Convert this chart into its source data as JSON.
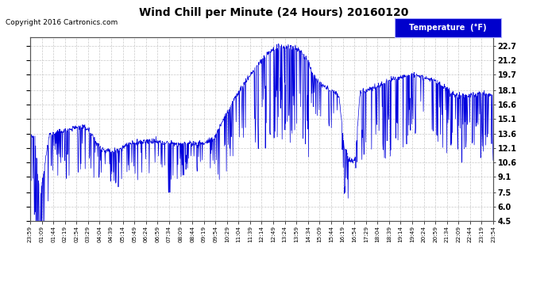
{
  "title": "Wind Chill per Minute (24 Hours) 20160120",
  "copyright": "Copyright 2016 Cartronics.com",
  "legend_label": "Temperature  (°F)",
  "yticks": [
    4.5,
    6.0,
    7.5,
    9.1,
    10.6,
    12.1,
    13.6,
    15.1,
    16.6,
    18.1,
    19.7,
    21.2,
    22.7
  ],
  "ymin": 4.5,
  "ymax": 23.6,
  "line_color": "#0000dd",
  "bg_color": "#ffffff",
  "plot_bg_color": "#ffffff",
  "grid_color": "#bbbbbb",
  "title_color": "#000000",
  "copyright_color": "#000000",
  "legend_bg": "#0000cc",
  "legend_text_color": "#ffffff",
  "xtick_labels": [
    "23:59",
    "01:09",
    "01:44",
    "02:19",
    "02:54",
    "03:29",
    "04:04",
    "04:39",
    "05:14",
    "05:49",
    "06:24",
    "06:59",
    "07:34",
    "08:09",
    "08:44",
    "09:19",
    "09:54",
    "10:29",
    "11:04",
    "11:39",
    "12:14",
    "12:49",
    "13:24",
    "13:59",
    "14:34",
    "15:09",
    "15:44",
    "16:19",
    "16:54",
    "17:29",
    "18:04",
    "18:39",
    "19:14",
    "19:49",
    "20:24",
    "20:59",
    "21:34",
    "22:09",
    "22:44",
    "23:19",
    "23:54"
  ],
  "envelope_x": [
    0,
    15,
    30,
    60,
    100,
    150,
    180,
    220,
    260,
    310,
    360,
    430,
    480,
    540,
    570,
    600,
    640,
    680,
    710,
    740,
    770,
    800,
    830,
    860,
    880,
    910,
    940,
    960,
    975,
    990,
    1010,
    1025,
    1050,
    1080,
    1110,
    1150,
    1190,
    1220,
    1260,
    1300,
    1330,
    1360,
    1400,
    1439
  ],
  "envelope_y": [
    13.2,
    13.2,
    7.0,
    13.5,
    13.8,
    14.3,
    14.1,
    12.0,
    11.8,
    12.5,
    12.8,
    12.6,
    12.5,
    12.6,
    13.0,
    15.0,
    17.5,
    19.5,
    20.8,
    22.0,
    22.5,
    22.7,
    22.4,
    21.5,
    19.5,
    18.5,
    18.0,
    17.5,
    12.5,
    10.8,
    10.8,
    17.8,
    18.2,
    18.5,
    19.0,
    19.5,
    19.8,
    19.5,
    19.0,
    18.0,
    17.5,
    17.5,
    17.8,
    17.5
  ]
}
